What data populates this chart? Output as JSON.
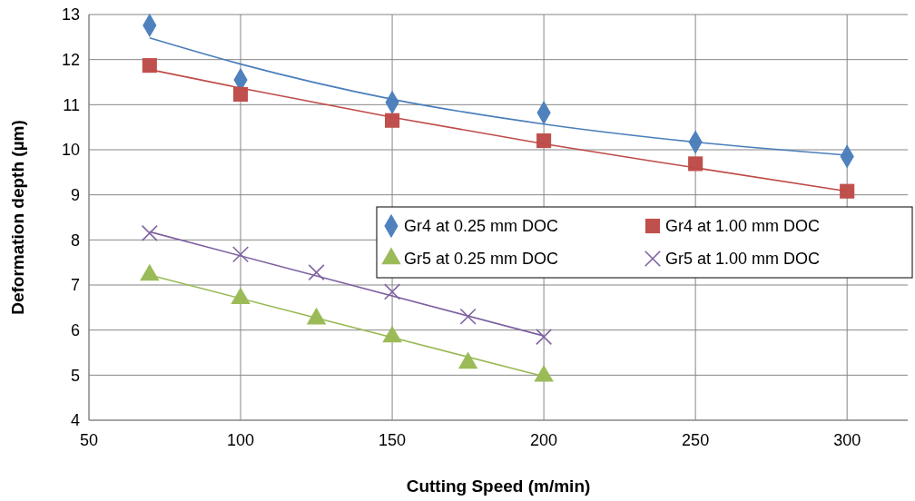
{
  "chart_data": {
    "type": "scatter",
    "xlabel": "Cutting Speed (m/min)",
    "ylabel": "Deformation depth (µm)",
    "xlim": [
      50,
      320
    ],
    "xticks": [
      50,
      100,
      150,
      200,
      250,
      300
    ],
    "ylim": [
      4,
      13
    ],
    "yticks": [
      4,
      5,
      6,
      7,
      8,
      9,
      10,
      11,
      12,
      13
    ],
    "grid": true,
    "legend": "right",
    "series": [
      {
        "name": "Gr4 at 0.25 mm DOC",
        "color": "#4f81bd",
        "marker": "diamond",
        "x": [
          70,
          100,
          150,
          200,
          250,
          300
        ],
        "values": [
          12.76,
          11.55,
          11.05,
          10.82,
          10.17,
          9.85
        ]
      },
      {
        "name": "Gr4 at 1.00 mm DOC",
        "color": "#c0504d",
        "marker": "square",
        "x": [
          70,
          100,
          150,
          200,
          250,
          300
        ],
        "values": [
          11.87,
          11.23,
          10.65,
          10.2,
          9.69,
          9.08
        ]
      },
      {
        "name": "Gr5 at 0.25 mm DOC",
        "color": "#9bbb59",
        "marker": "triangle",
        "x": [
          70,
          100,
          125,
          150,
          175,
          200
        ],
        "values": [
          7.22,
          6.7,
          6.25,
          5.85,
          5.27,
          4.98
        ]
      },
      {
        "name": "Gr5 at 1.00 mm DOC",
        "color": "#8064a2",
        "marker": "cross",
        "x": [
          70,
          100,
          125,
          150,
          175,
          200
        ],
        "values": [
          8.15,
          7.68,
          7.28,
          6.85,
          6.3,
          5.85
        ]
      },
      {
        "type": "line",
        "color": "#4a7ebb",
        "marker": "none",
        "x": [
          70,
          100,
          150,
          200,
          250,
          300
        ],
        "values": [
          12.48,
          11.9,
          11.12,
          10.57,
          10.17,
          9.88
        ]
      },
      {
        "type": "line",
        "color": "#be4b48",
        "marker": "none",
        "x": [
          70,
          100,
          150,
          200,
          250,
          300
        ],
        "values": [
          11.78,
          11.37,
          10.72,
          10.13,
          9.6,
          9.08
        ]
      },
      {
        "type": "line",
        "color": "#98b954",
        "marker": "none",
        "x": [
          70,
          200
        ],
        "values": [
          7.22,
          4.97
        ]
      },
      {
        "type": "line",
        "color": "#7d60a0",
        "marker": "none",
        "x": [
          70,
          200
        ],
        "values": [
          8.18,
          5.87
        ]
      }
    ]
  }
}
